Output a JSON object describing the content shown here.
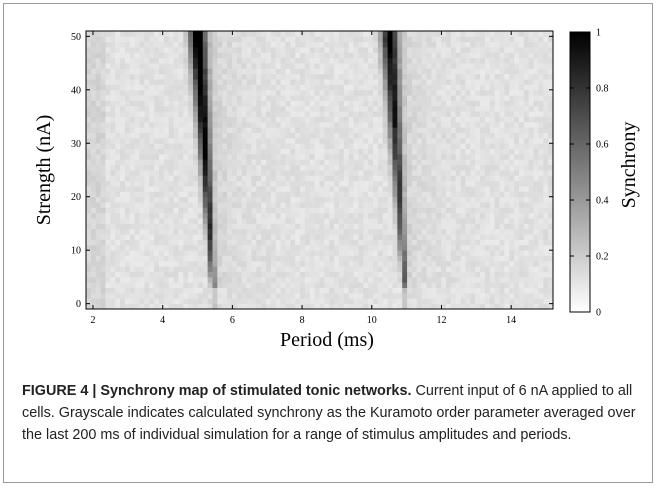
{
  "chart_data": {
    "type": "heatmap",
    "xlabel": "Period (ms)",
    "ylabel": "Strength (nA)",
    "colorbar_label": "Synchrony",
    "xlim": [
      1.8,
      15.2
    ],
    "ylim": [
      -1,
      51
    ],
    "x_ticks": [
      "2",
      "4",
      "6",
      "8",
      "10",
      "12",
      "14"
    ],
    "y_ticks": [
      "0",
      "10",
      "20",
      "30",
      "40",
      "50"
    ],
    "colorbar_ticks": [
      "0",
      "0.2",
      "0.4",
      "0.6",
      "0.8",
      "1"
    ],
    "colorbar_range": [
      0,
      1
    ],
    "colormap": "grayscale (white = 0, black = 1)",
    "bands": [
      {
        "period_at_50nA": 5.0,
        "period_at_3nA": 5.45,
        "peak_synchrony": 1.0
      },
      {
        "period_at_50nA": 10.5,
        "period_at_3nA": 10.95,
        "peak_synchrony": 0.85
      }
    ],
    "background_synchrony": 0.08
  },
  "caption": {
    "label": "FIGURE 4 | Synchrony map of stimulated tonic networks.",
    "text": " Current input of 6 nA applied to all cells. Grayscale indicates calculated synchrony as the Kuramoto order parameter averaged over the last 200 ms of individual simulation for a range of stimulus amplitudes and periods."
  }
}
